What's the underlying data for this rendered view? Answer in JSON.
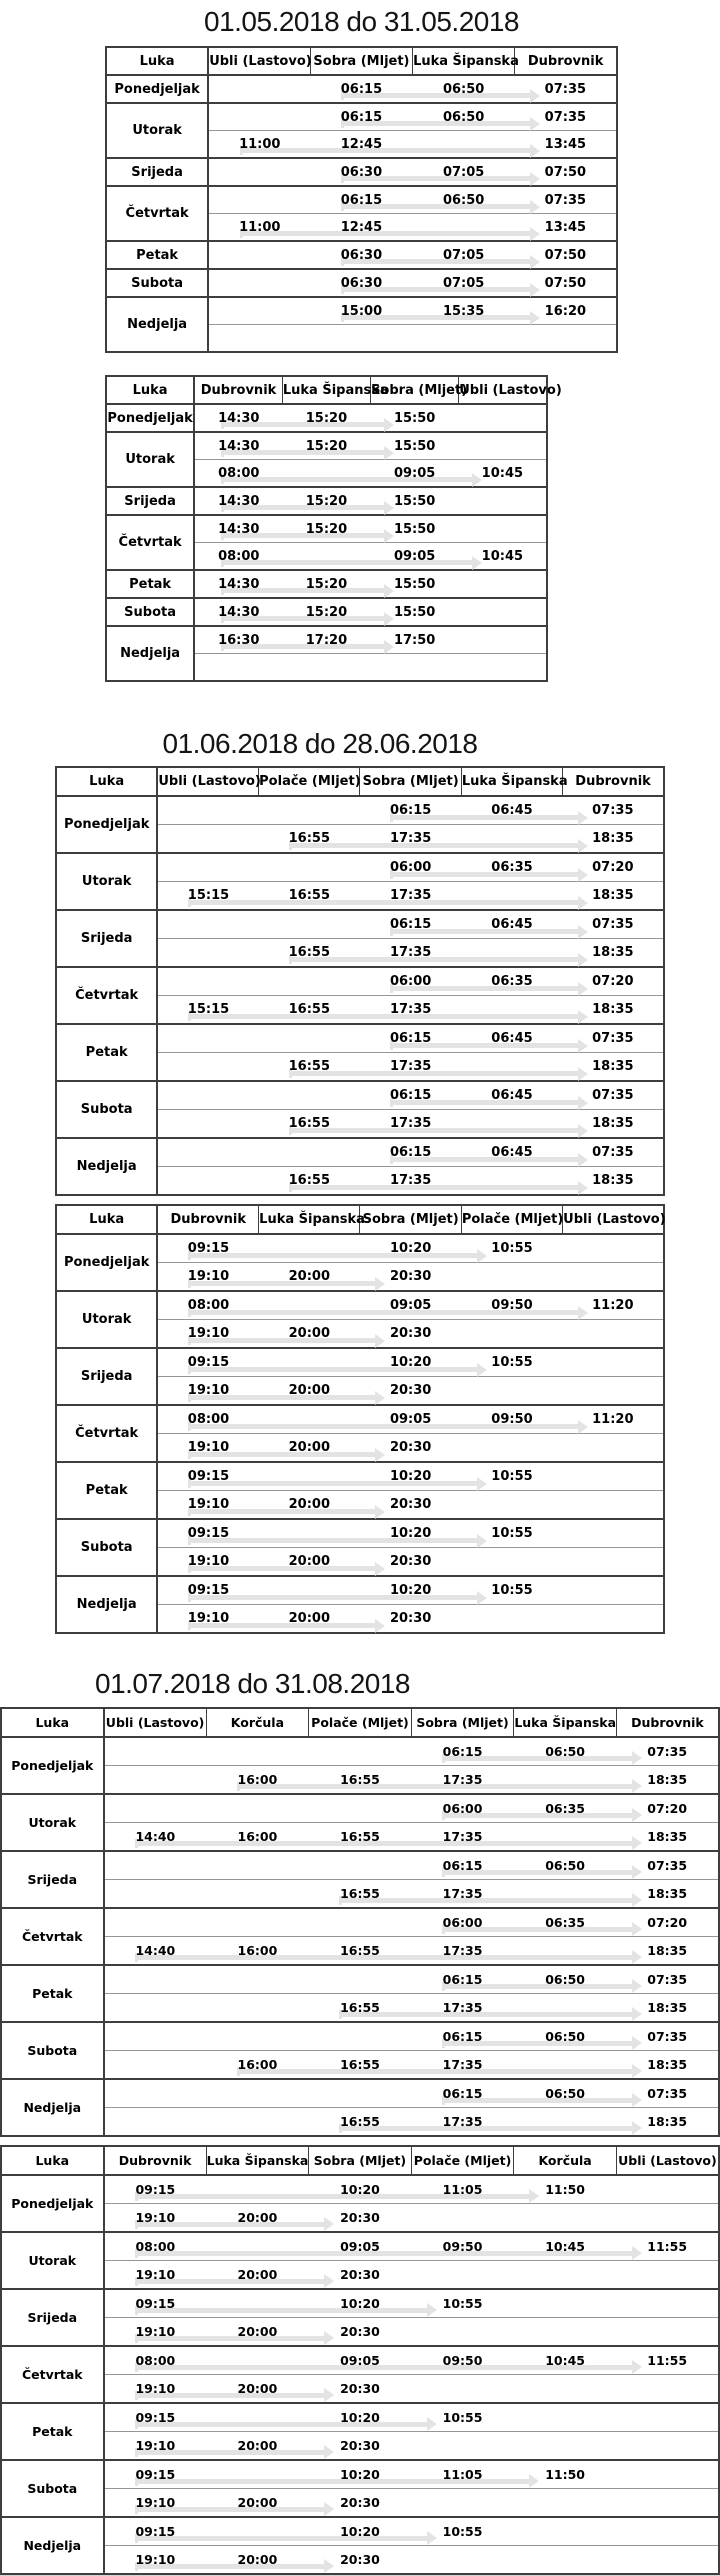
{
  "colors": {
    "background": "#ffffff",
    "text": "#000000",
    "border_dark": "#3e3e3e",
    "border_light": "#969696",
    "route_arrow": "#e3e3e3"
  },
  "sections": [
    {
      "title": "01.05.2018 do 31.05.2018",
      "tables": [
        {
          "columns": [
            "Luka",
            "Ubli (Lastovo)",
            "Sobra (Mljet)",
            "Luka Šipanska",
            "Dubrovnik"
          ],
          "days": [
            {
              "day": "Ponedjeljak",
              "trips": [
                [
                  "",
                  "06:15",
                  "06:50",
                  "07:35"
                ]
              ]
            },
            {
              "day": "Utorak",
              "trips": [
                [
                  "",
                  "06:15",
                  "06:50",
                  "07:35"
                ],
                [
                  "11:00",
                  "12:45",
                  "",
                  "13:45"
                ]
              ]
            },
            {
              "day": "Srijeda",
              "trips": [
                [
                  "",
                  "06:30",
                  "07:05",
                  "07:50"
                ]
              ]
            },
            {
              "day": "Četvrtak",
              "trips": [
                [
                  "",
                  "06:15",
                  "06:50",
                  "07:35"
                ],
                [
                  "11:00",
                  "12:45",
                  "",
                  "13:45"
                ]
              ]
            },
            {
              "day": "Petak",
              "trips": [
                [
                  "",
                  "06:30",
                  "07:05",
                  "07:50"
                ]
              ]
            },
            {
              "day": "Subota",
              "trips": [
                [
                  "",
                  "06:30",
                  "07:05",
                  "07:50"
                ]
              ]
            },
            {
              "day": "Nedjelja",
              "trips": [
                [
                  "",
                  "15:00",
                  "15:35",
                  "16:20"
                ],
                [
                  "",
                  "",
                  "",
                  ""
                ]
              ]
            }
          ]
        },
        {
          "columns": [
            "Luka",
            "Dubrovnik",
            "Luka Šipanska",
            "Sobra (Mljet)",
            "Ubli (Lastovo)"
          ],
          "days": [
            {
              "day": "Ponedjeljak",
              "trips": [
                [
                  "14:30",
                  "15:20",
                  "15:50",
                  ""
                ]
              ]
            },
            {
              "day": "Utorak",
              "trips": [
                [
                  "14:30",
                  "15:20",
                  "15:50",
                  ""
                ],
                [
                  "08:00",
                  "",
                  "09:05",
                  "10:45"
                ]
              ]
            },
            {
              "day": "Srijeda",
              "trips": [
                [
                  "14:30",
                  "15:20",
                  "15:50",
                  ""
                ]
              ]
            },
            {
              "day": "Četvrtak",
              "trips": [
                [
                  "14:30",
                  "15:20",
                  "15:50",
                  ""
                ],
                [
                  "08:00",
                  "",
                  "09:05",
                  "10:45"
                ]
              ]
            },
            {
              "day": "Petak",
              "trips": [
                [
                  "14:30",
                  "15:20",
                  "15:50",
                  ""
                ]
              ]
            },
            {
              "day": "Subota",
              "trips": [
                [
                  "14:30",
                  "15:20",
                  "15:50",
                  ""
                ]
              ]
            },
            {
              "day": "Nedjelja",
              "trips": [
                [
                  "16:30",
                  "17:20",
                  "17:50",
                  ""
                ],
                [
                  "",
                  "",
                  "",
                  ""
                ]
              ]
            }
          ]
        }
      ]
    },
    {
      "title": "01.06.2018 do 28.06.2018",
      "tables": [
        {
          "columns": [
            "Luka",
            "Ubli (Lastovo)",
            "Polače (Mljet)",
            "Sobra (Mljet)",
            "Luka Šipanska",
            "Dubrovnik"
          ],
          "days": [
            {
              "day": "Ponedjeljak",
              "trips": [
                [
                  "",
                  "",
                  "06:15",
                  "06:45",
                  "07:35"
                ],
                [
                  "",
                  "16:55",
                  "17:35",
                  "",
                  "18:35"
                ]
              ]
            },
            {
              "day": "Utorak",
              "trips": [
                [
                  "",
                  "",
                  "06:00",
                  "06:35",
                  "07:20"
                ],
                [
                  "15:15",
                  "16:55",
                  "17:35",
                  "",
                  "18:35"
                ]
              ]
            },
            {
              "day": "Srijeda",
              "trips": [
                [
                  "",
                  "",
                  "06:15",
                  "06:45",
                  "07:35"
                ],
                [
                  "",
                  "16:55",
                  "17:35",
                  "",
                  "18:35"
                ]
              ]
            },
            {
              "day": "Četvrtak",
              "trips": [
                [
                  "",
                  "",
                  "06:00",
                  "06:35",
                  "07:20"
                ],
                [
                  "15:15",
                  "16:55",
                  "17:35",
                  "",
                  "18:35"
                ]
              ]
            },
            {
              "day": "Petak",
              "trips": [
                [
                  "",
                  "",
                  "06:15",
                  "06:45",
                  "07:35"
                ],
                [
                  "",
                  "16:55",
                  "17:35",
                  "",
                  "18:35"
                ]
              ]
            },
            {
              "day": "Subota",
              "trips": [
                [
                  "",
                  "",
                  "06:15",
                  "06:45",
                  "07:35"
                ],
                [
                  "",
                  "16:55",
                  "17:35",
                  "",
                  "18:35"
                ]
              ]
            },
            {
              "day": "Nedjelja",
              "trips": [
                [
                  "",
                  "",
                  "06:15",
                  "06:45",
                  "07:35"
                ],
                [
                  "",
                  "16:55",
                  "17:35",
                  "",
                  "18:35"
                ]
              ]
            }
          ]
        },
        {
          "columns": [
            "Luka",
            "Dubrovnik",
            "Luka Šipanska",
            "Sobra (Mljet)",
            "Polače (Mljet)",
            "Ubli (Lastovo)"
          ],
          "days": [
            {
              "day": "Ponedjeljak",
              "trips": [
                [
                  "09:15",
                  "",
                  "10:20",
                  "10:55",
                  ""
                ],
                [
                  "19:10",
                  "20:00",
                  "20:30",
                  "",
                  ""
                ]
              ]
            },
            {
              "day": "Utorak",
              "trips": [
                [
                  "08:00",
                  "",
                  "09:05",
                  "09:50",
                  "11:20"
                ],
                [
                  "19:10",
                  "20:00",
                  "20:30",
                  "",
                  ""
                ]
              ]
            },
            {
              "day": "Srijeda",
              "trips": [
                [
                  "09:15",
                  "",
                  "10:20",
                  "10:55",
                  ""
                ],
                [
                  "19:10",
                  "20:00",
                  "20:30",
                  "",
                  ""
                ]
              ]
            },
            {
              "day": "Četvrtak",
              "trips": [
                [
                  "08:00",
                  "",
                  "09:05",
                  "09:50",
                  "11:20"
                ],
                [
                  "19:10",
                  "20:00",
                  "20:30",
                  "",
                  ""
                ]
              ]
            },
            {
              "day": "Petak",
              "trips": [
                [
                  "09:15",
                  "",
                  "10:20",
                  "10:55",
                  ""
                ],
                [
                  "19:10",
                  "20:00",
                  "20:30",
                  "",
                  ""
                ]
              ]
            },
            {
              "day": "Subota",
              "trips": [
                [
                  "09:15",
                  "",
                  "10:20",
                  "10:55",
                  ""
                ],
                [
                  "19:10",
                  "20:00",
                  "20:30",
                  "",
                  ""
                ]
              ]
            },
            {
              "day": "Nedjelja",
              "trips": [
                [
                  "09:15",
                  "",
                  "10:20",
                  "10:55",
                  ""
                ],
                [
                  "19:10",
                  "20:00",
                  "20:30",
                  "",
                  ""
                ]
              ]
            }
          ]
        }
      ]
    },
    {
      "title": "01.07.2018 do 31.08.2018",
      "tables": [
        {
          "columns": [
            "Luka",
            "Ubli (Lastovo)",
            "Korčula",
            "Polače (Mljet)",
            "Sobra (Mljet)",
            "Luka Šipanska",
            "Dubrovnik"
          ],
          "days": [
            {
              "day": "Ponedjeljak",
              "trips": [
                [
                  "",
                  "",
                  "",
                  "06:15",
                  "06:50",
                  "07:35"
                ],
                [
                  "",
                  "16:00",
                  "16:55",
                  "17:35",
                  "",
                  "18:35"
                ]
              ]
            },
            {
              "day": "Utorak",
              "trips": [
                [
                  "",
                  "",
                  "",
                  "06:00",
                  "06:35",
                  "07:20"
                ],
                [
                  "14:40",
                  "16:00",
                  "16:55",
                  "17:35",
                  "",
                  "18:35"
                ]
              ]
            },
            {
              "day": "Srijeda",
              "trips": [
                [
                  "",
                  "",
                  "",
                  "06:15",
                  "06:50",
                  "07:35"
                ],
                [
                  "",
                  "",
                  "16:55",
                  "17:35",
                  "",
                  "18:35"
                ]
              ]
            },
            {
              "day": "Četvrtak",
              "trips": [
                [
                  "",
                  "",
                  "",
                  "06:00",
                  "06:35",
                  "07:20"
                ],
                [
                  "14:40",
                  "16:00",
                  "16:55",
                  "17:35",
                  "",
                  "18:35"
                ]
              ]
            },
            {
              "day": "Petak",
              "trips": [
                [
                  "",
                  "",
                  "",
                  "06:15",
                  "06:50",
                  "07:35"
                ],
                [
                  "",
                  "",
                  "16:55",
                  "17:35",
                  "",
                  "18:35"
                ]
              ]
            },
            {
              "day": "Subota",
              "trips": [
                [
                  "",
                  "",
                  "",
                  "06:15",
                  "06:50",
                  "07:35"
                ],
                [
                  "",
                  "16:00",
                  "16:55",
                  "17:35",
                  "",
                  "18:35"
                ]
              ]
            },
            {
              "day": "Nedjelja",
              "trips": [
                [
                  "",
                  "",
                  "",
                  "06:15",
                  "06:50",
                  "07:35"
                ],
                [
                  "",
                  "",
                  "16:55",
                  "17:35",
                  "",
                  "18:35"
                ]
              ]
            }
          ]
        },
        {
          "columns": [
            "Luka",
            "Dubrovnik",
            "Luka Šipanska",
            "Sobra (Mljet)",
            "Polače (Mljet)",
            "Korčula",
            "Ubli (Lastovo)"
          ],
          "days": [
            {
              "day": "Ponedjeljak",
              "trips": [
                [
                  "09:15",
                  "",
                  "10:20",
                  "11:05",
                  "11:50",
                  ""
                ],
                [
                  "19:10",
                  "20:00",
                  "20:30",
                  "",
                  "",
                  ""
                ]
              ]
            },
            {
              "day": "Utorak",
              "trips": [
                [
                  "08:00",
                  "",
                  "09:05",
                  "09:50",
                  "10:45",
                  "11:55"
                ],
                [
                  "19:10",
                  "20:00",
                  "20:30",
                  "",
                  "",
                  ""
                ]
              ]
            },
            {
              "day": "Srijeda",
              "trips": [
                [
                  "09:15",
                  "",
                  "10:20",
                  "10:55",
                  "",
                  ""
                ],
                [
                  "19:10",
                  "20:00",
                  "20:30",
                  "",
                  "",
                  ""
                ]
              ]
            },
            {
              "day": "Četvrtak",
              "trips": [
                [
                  "08:00",
                  "",
                  "09:05",
                  "09:50",
                  "10:45",
                  "11:55"
                ],
                [
                  "19:10",
                  "20:00",
                  "20:30",
                  "",
                  "",
                  ""
                ]
              ]
            },
            {
              "day": "Petak",
              "trips": [
                [
                  "09:15",
                  "",
                  "10:20",
                  "10:55",
                  "",
                  ""
                ],
                [
                  "19:10",
                  "20:00",
                  "20:30",
                  "",
                  "",
                  ""
                ]
              ]
            },
            {
              "day": "Subota",
              "trips": [
                [
                  "09:15",
                  "",
                  "10:20",
                  "11:05",
                  "11:50",
                  ""
                ],
                [
                  "19:10",
                  "20:00",
                  "20:30",
                  "",
                  "",
                  ""
                ]
              ]
            },
            {
              "day": "Nedjelja",
              "trips": [
                [
                  "09:15",
                  "",
                  "10:20",
                  "10:55",
                  "",
                  ""
                ],
                [
                  "19:10",
                  "20:00",
                  "20:30",
                  "",
                  "",
                  ""
                ]
              ]
            }
          ]
        }
      ]
    }
  ]
}
